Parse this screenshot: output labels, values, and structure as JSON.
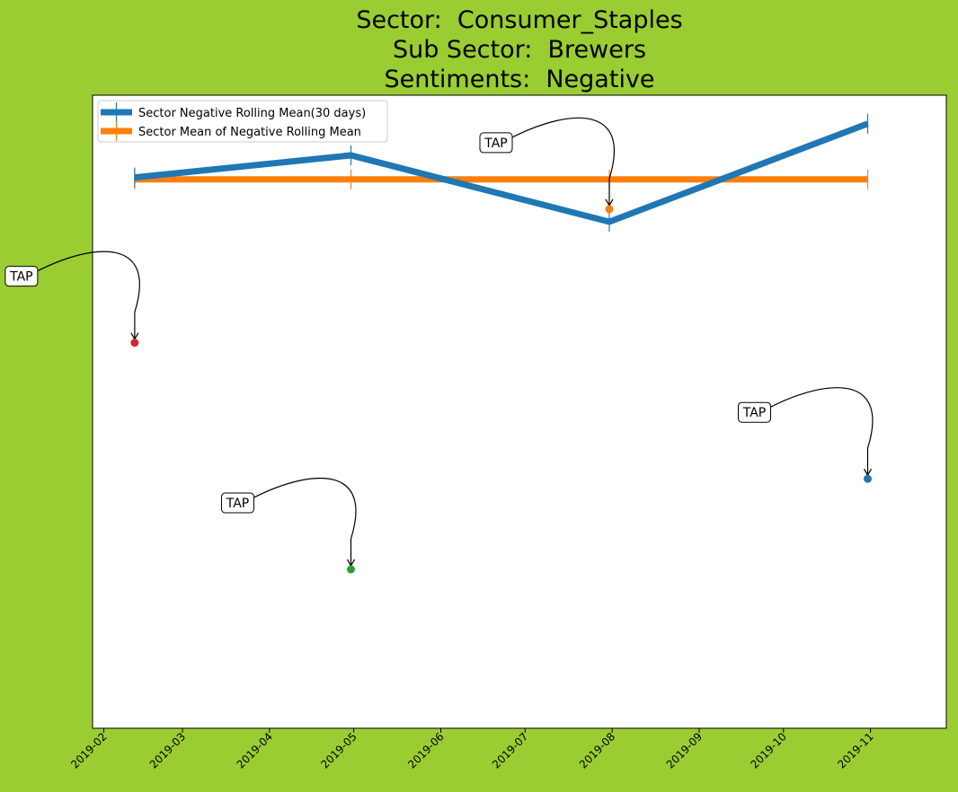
{
  "colors": {
    "background": "#9ACD32",
    "plot_background": "#FFFFFF",
    "series_line": "#1F77B4",
    "mean_line": "#FF7F0E",
    "point_red": "#D62728",
    "point_green": "#2CA02C",
    "point_orange": "#FF7F0E",
    "point_blue": "#1F77B4"
  },
  "chart_data": {
    "type": "line",
    "title_lines": [
      "Sector:  Consumer_Staples",
      "Sub Sector:  Brewers",
      "Sentiments:  Negative"
    ],
    "xlabel": "",
    "ylabel": "",
    "x_axis": {
      "kind": "date",
      "range": [
        "2019-01-28",
        "2019-11-28"
      ],
      "ticks": [
        "2019-02-01",
        "2019-03-01",
        "2019-04-01",
        "2019-05-01",
        "2019-06-01",
        "2019-07-01",
        "2019-08-01",
        "2019-09-01",
        "2019-10-01",
        "2019-11-01"
      ],
      "tick_labels": [
        "2019-02",
        "2019-03",
        "2019-04",
        "2019-05",
        "2019-06",
        "2019-07",
        "2019-08",
        "2019-09",
        "2019-10",
        "2019-11"
      ]
    },
    "y_axis": {
      "range": [
        0,
        1
      ],
      "tick_labels_visible": false
    },
    "grid": false,
    "legend_position": "upper-left",
    "series": [
      {
        "name": "Sector Negative Rolling Mean(30 days)",
        "color": "#1F77B4",
        "x": [
          "2019-02-12",
          "2019-04-30",
          "2019-07-31",
          "2019-10-31"
        ],
        "y": [
          0.87,
          0.905,
          0.8,
          0.955
        ]
      },
      {
        "name": "Sector Mean of Negative Rolling Mean",
        "color": "#FF7F0E",
        "x": [
          "2019-02-12",
          "2019-04-30",
          "2019-07-31",
          "2019-10-31"
        ],
        "y": [
          0.867,
          0.867,
          0.867,
          0.867
        ]
      }
    ],
    "points": [
      {
        "x": "2019-02-12",
        "y": 0.609,
        "color": "#D62728",
        "label": "TAP"
      },
      {
        "x": "2019-04-30",
        "y": 0.251,
        "color": "#2CA02C",
        "label": "TAP"
      },
      {
        "x": "2019-07-31",
        "y": 0.82,
        "color": "#FF7F0E",
        "label": "TAP"
      },
      {
        "x": "2019-10-31",
        "y": 0.394,
        "color": "#1F77B4",
        "label": "TAP"
      }
    ]
  }
}
